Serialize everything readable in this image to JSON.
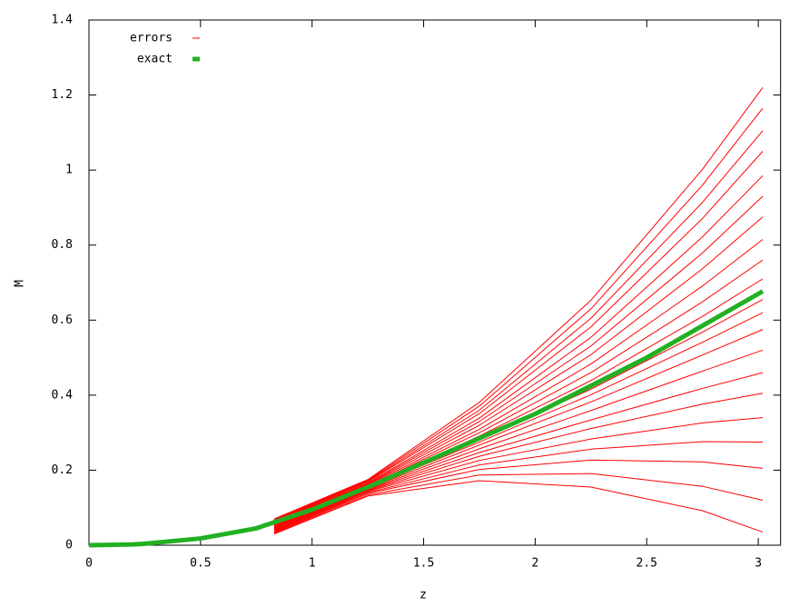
{
  "chart_data": {
    "type": "line",
    "xlabel": "z",
    "ylabel": "M",
    "xlim": [
      0,
      3.1
    ],
    "ylim": [
      0,
      1.4
    ],
    "xticks": [
      0,
      0.5,
      1,
      1.5,
      2,
      2.5,
      3
    ],
    "yticks": [
      0,
      0.2,
      0.4,
      0.6,
      0.8,
      1,
      1.2,
      1.4
    ],
    "legend": "top-left",
    "series": [
      {
        "name": "errors",
        "color": "#ff0000",
        "width": 1,
        "x": [
          0.83,
          1.25,
          1.75,
          2.25,
          2.75,
          3.02
        ],
        "lines": [
          [
            0.03,
            0.131,
            0.172,
            0.155,
            0.092,
            0.035
          ],
          [
            0.032,
            0.134,
            0.187,
            0.191,
            0.157,
            0.12
          ],
          [
            0.034,
            0.138,
            0.202,
            0.227,
            0.222,
            0.205
          ],
          [
            0.036,
            0.14,
            0.214,
            0.256,
            0.276,
            0.275
          ],
          [
            0.038,
            0.143,
            0.226,
            0.283,
            0.326,
            0.34
          ],
          [
            0.04,
            0.145,
            0.237,
            0.311,
            0.376,
            0.405
          ],
          [
            0.042,
            0.147,
            0.247,
            0.334,
            0.418,
            0.46
          ],
          [
            0.044,
            0.149,
            0.257,
            0.359,
            0.464,
            0.52
          ],
          [
            0.046,
            0.151,
            0.267,
            0.382,
            0.507,
            0.575
          ],
          [
            0.048,
            0.153,
            0.275,
            0.401,
            0.541,
            0.62
          ],
          [
            0.05,
            0.154,
            0.281,
            0.416,
            0.568,
            0.655
          ],
          [
            0.052,
            0.156,
            0.291,
            0.439,
            0.61,
            0.71
          ],
          [
            0.054,
            0.158,
            0.3,
            0.46,
            0.649,
            0.76
          ],
          [
            0.056,
            0.16,
            0.309,
            0.483,
            0.691,
            0.815
          ],
          [
            0.058,
            0.162,
            0.32,
            0.508,
            0.737,
            0.875
          ],
          [
            0.06,
            0.164,
            0.33,
            0.531,
            0.779,
            0.93
          ],
          [
            0.062,
            0.166,
            0.339,
            0.554,
            0.822,
            0.985
          ],
          [
            0.064,
            0.169,
            0.351,
            0.582,
            0.871,
            1.05
          ],
          [
            0.066,
            0.171,
            0.36,
            0.605,
            0.914,
            1.105
          ],
          [
            0.068,
            0.173,
            0.371,
            0.63,
            0.96,
            1.165
          ],
          [
            0.07,
            0.175,
            0.381,
            0.653,
            1.002,
            1.22
          ]
        ]
      },
      {
        "name": "exact",
        "color": "#22b022",
        "width": 5,
        "x": [
          0,
          0.2,
          0.25,
          0.5,
          0.75,
          1,
          1.25,
          1.5,
          1.75,
          2,
          2.25,
          2.5,
          2.75,
          3,
          3.02
        ],
        "lines": [
          [
            0,
            0.002,
            0.004,
            0.018,
            0.045,
            0.095,
            0.155,
            0.22,
            0.285,
            0.35,
            0.425,
            0.5,
            0.585,
            0.67,
            0.677
          ]
        ]
      }
    ]
  }
}
